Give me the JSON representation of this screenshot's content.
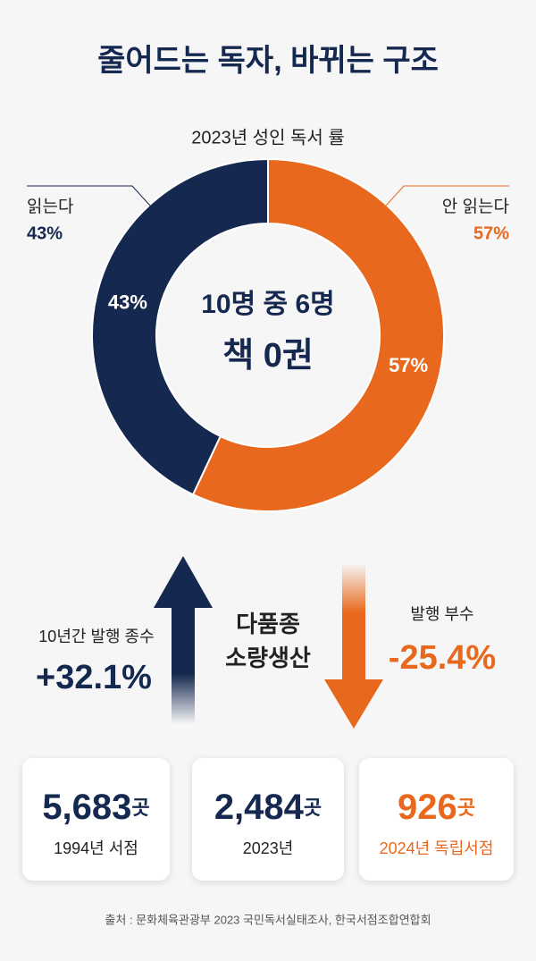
{
  "title": "줄어드는 독자, 바뀌는 구조",
  "chart_data": {
    "type": "pie",
    "title": "2023년 성인 독서 률",
    "center_text": [
      "10명 중 6명",
      "책 0권"
    ],
    "categories": [
      "읽는다",
      "안 읽는다"
    ],
    "values": [
      43,
      57
    ],
    "value_labels": [
      "43%",
      "57%"
    ],
    "colors": [
      "#15284f",
      "#e8691d"
    ],
    "donut": true
  },
  "trends": [
    {
      "label": "10년간 발행 종수",
      "value": "+32.1%"
    },
    {
      "label": "발행 부수",
      "value": "-25.4%"
    }
  ],
  "center_label": [
    "다품종",
    "소량생산"
  ],
  "stats": [
    {
      "number": "5,683",
      "unit": "곳",
      "label": "1994년 서점"
    },
    {
      "number": "2,484",
      "unit": "곳",
      "label": "2023년"
    },
    {
      "number": "926",
      "unit": "곳",
      "label": "2024년 독립서점"
    }
  ],
  "source": "출처 : 문화체육관광부 2023 국민독서실태조사, 한국서점조합연합회"
}
